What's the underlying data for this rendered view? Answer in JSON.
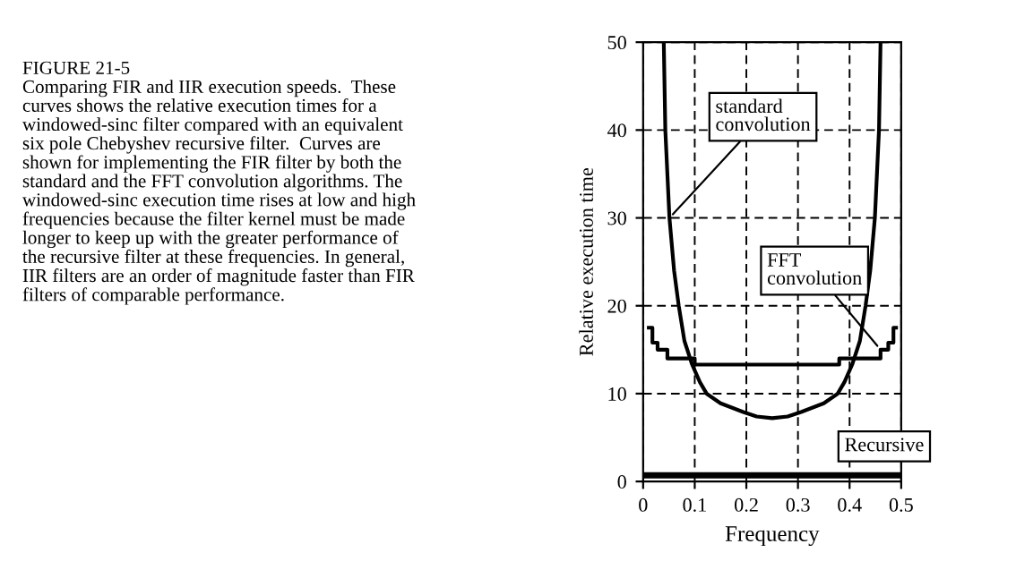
{
  "chart_data": {
    "type": "line",
    "title": "FIGURE 21-5",
    "annotations": [
      "Comparing FIR and IIR execution speeds.  These\ncurves shows the relative execution times for a\nwindowed-sinc filter compared with an equivalent\nsix pole Chebyshev recursive filter.  Curves are\nshown for implementing the FIR filter by both the\nstandard and the FFT convolution algorithms. The\nwindowed-sinc execution time rises at low and high\nfrequencies because the filter kernel must be made\nlonger to keep up with the greater performance of\nthe recursive filter at these frequencies. In general,\nIIR filters are an order of magnitude faster than FIR\nfilters of comparable performance."
    ],
    "xlabel": "Frequency",
    "ylabel": "Relative execution time",
    "series": [
      {
        "name": "standard\nconvolution",
        "color": "#000000",
        "x": [
          0.04,
          0.043,
          0.051,
          0.06,
          0.069,
          0.08,
          0.095,
          0.11,
          0.123,
          0.15,
          0.194,
          0.22,
          0.25,
          0.28,
          0.306,
          0.35,
          0.377,
          0.39,
          0.405,
          0.42,
          0.431,
          0.44,
          0.449,
          0.457,
          0.46
        ],
        "values": [
          50,
          40,
          30,
          24,
          20,
          16,
          13.3,
          11.3,
          10,
          8.9,
          7.9,
          7.4,
          7.2,
          7.4,
          7.9,
          8.9,
          10,
          11.3,
          13.3,
          16,
          20,
          24,
          30,
          40,
          50
        ]
      },
      {
        "name": "FFT\nconvolution",
        "type": "step",
        "color": "#000000",
        "x": [
          0.011,
          0.018,
          0.028,
          0.047,
          0.1,
          0.38,
          0.46,
          0.475,
          0.485,
          0.49
        ],
        "values": [
          17.5,
          15.8,
          15,
          14,
          13.3,
          14,
          15,
          15.8,
          17.5,
          17.5
        ]
      },
      {
        "name": "Recursive",
        "color": "#000000",
        "x": [
          0,
          0.5
        ],
        "values": [
          0.7,
          0.7
        ]
      }
    ],
    "xlim": [
      0,
      0.5
    ],
    "xticks": [
      0,
      0.1,
      0.2,
      0.3,
      0.4,
      0.5
    ],
    "ylim": [
      0,
      50
    ],
    "yticks": [
      0,
      10,
      20,
      30,
      40,
      50
    ],
    "grid": true,
    "line_style": "solid",
    "legend": false
  }
}
